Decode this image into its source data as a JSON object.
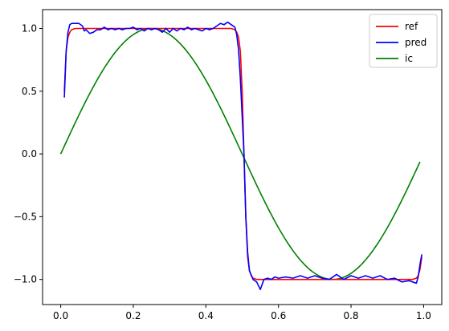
{
  "chart_data": {
    "type": "line",
    "title": "",
    "xlabel": "",
    "ylabel": "",
    "xlim": [
      -0.05,
      1.05
    ],
    "ylim": [
      -1.2,
      1.15
    ],
    "grid": false,
    "legend_position": "top-right",
    "x_ticks": [
      0.0,
      0.2,
      0.4,
      0.6,
      0.8,
      1.0
    ],
    "x_tick_labels": [
      "0.0",
      "0.2",
      "0.4",
      "0.6",
      "0.8",
      "1.0"
    ],
    "y_ticks": [
      1.0,
      0.5,
      0.0,
      -0.5,
      -1.0
    ],
    "y_tick_labels": [
      "1.0",
      "0.5",
      "0.0",
      "−0.5",
      "−1.0"
    ],
    "series": [
      {
        "name": "ref",
        "color": "#ff0000",
        "points": [
          [
            0.01,
            0.5
          ],
          [
            0.015,
            0.82
          ],
          [
            0.02,
            0.93
          ],
          [
            0.025,
            0.97
          ],
          [
            0.03,
            0.99
          ],
          [
            0.04,
            1.0
          ],
          [
            0.1,
            1.0
          ],
          [
            0.2,
            1.0
          ],
          [
            0.3,
            1.0
          ],
          [
            0.4,
            1.0
          ],
          [
            0.47,
            1.0
          ],
          [
            0.48,
            0.99
          ],
          [
            0.485,
            0.97
          ],
          [
            0.49,
            0.93
          ],
          [
            0.495,
            0.82
          ],
          [
            0.5,
            0.5
          ],
          [
            0.505,
            0.0
          ],
          [
            0.51,
            -0.5
          ],
          [
            0.515,
            -0.82
          ],
          [
            0.52,
            -0.93
          ],
          [
            0.525,
            -0.97
          ],
          [
            0.53,
            -0.99
          ],
          [
            0.54,
            -1.0
          ],
          [
            0.6,
            -1.0
          ],
          [
            0.7,
            -1.0
          ],
          [
            0.8,
            -1.0
          ],
          [
            0.9,
            -1.0
          ],
          [
            0.97,
            -1.0
          ],
          [
            0.98,
            -0.99
          ],
          [
            0.985,
            -0.97
          ],
          [
            0.99,
            -0.92
          ],
          [
            0.995,
            -0.82
          ]
        ]
      },
      {
        "name": "pred",
        "color": "#0000ff",
        "points": [
          [
            0.01,
            0.45
          ],
          [
            0.015,
            0.82
          ],
          [
            0.02,
            0.97
          ],
          [
            0.025,
            1.03
          ],
          [
            0.03,
            1.04
          ],
          [
            0.04,
            1.04
          ],
          [
            0.05,
            1.04
          ],
          [
            0.06,
            1.02
          ],
          [
            0.065,
            0.98
          ],
          [
            0.07,
            0.99
          ],
          [
            0.08,
            0.96
          ],
          [
            0.09,
            0.97
          ],
          [
            0.1,
            0.99
          ],
          [
            0.11,
            0.99
          ],
          [
            0.12,
            1.01
          ],
          [
            0.13,
            0.99
          ],
          [
            0.14,
            1.0
          ],
          [
            0.15,
            0.99
          ],
          [
            0.16,
            1.0
          ],
          [
            0.17,
            0.99
          ],
          [
            0.18,
            1.0
          ],
          [
            0.19,
            1.0
          ],
          [
            0.2,
            1.01
          ],
          [
            0.21,
            0.99
          ],
          [
            0.22,
            1.0
          ],
          [
            0.23,
            0.98
          ],
          [
            0.24,
            1.0
          ],
          [
            0.25,
            0.99
          ],
          [
            0.26,
            1.0
          ],
          [
            0.27,
            0.99
          ],
          [
            0.28,
            0.97
          ],
          [
            0.29,
            1.0
          ],
          [
            0.3,
            0.97
          ],
          [
            0.31,
            1.0
          ],
          [
            0.32,
            0.98
          ],
          [
            0.33,
            1.0
          ],
          [
            0.34,
            0.99
          ],
          [
            0.35,
            1.01
          ],
          [
            0.36,
            0.99
          ],
          [
            0.37,
            1.0
          ],
          [
            0.38,
            0.99
          ],
          [
            0.39,
            0.98
          ],
          [
            0.4,
            1.0
          ],
          [
            0.41,
            0.99
          ],
          [
            0.42,
            1.0
          ],
          [
            0.43,
            1.02
          ],
          [
            0.44,
            1.04
          ],
          [
            0.45,
            1.03
          ],
          [
            0.46,
            1.05
          ],
          [
            0.47,
            1.03
          ],
          [
            0.48,
            1.01
          ],
          [
            0.485,
            0.95
          ],
          [
            0.49,
            0.83
          ],
          [
            0.495,
            0.6
          ],
          [
            0.5,
            0.3
          ],
          [
            0.505,
            0.0
          ],
          [
            0.51,
            -0.5
          ],
          [
            0.515,
            -0.78
          ],
          [
            0.52,
            -0.93
          ],
          [
            0.53,
            -1.0
          ],
          [
            0.54,
            -1.02
          ],
          [
            0.55,
            -1.08
          ],
          [
            0.56,
            -1.0
          ],
          [
            0.57,
            -0.99
          ],
          [
            0.58,
            -1.0
          ],
          [
            0.59,
            -0.98
          ],
          [
            0.6,
            -0.99
          ],
          [
            0.62,
            -0.98
          ],
          [
            0.64,
            -0.99
          ],
          [
            0.66,
            -0.97
          ],
          [
            0.68,
            -0.99
          ],
          [
            0.7,
            -0.97
          ],
          [
            0.72,
            -0.99
          ],
          [
            0.74,
            -1.0
          ],
          [
            0.76,
            -0.96
          ],
          [
            0.78,
            -1.0
          ],
          [
            0.8,
            -0.97
          ],
          [
            0.82,
            -0.99
          ],
          [
            0.84,
            -0.97
          ],
          [
            0.86,
            -0.99
          ],
          [
            0.88,
            -0.97
          ],
          [
            0.9,
            -1.0
          ],
          [
            0.92,
            -0.99
          ],
          [
            0.94,
            -1.02
          ],
          [
            0.96,
            -1.01
          ],
          [
            0.97,
            -1.02
          ],
          [
            0.98,
            -1.03
          ],
          [
            0.985,
            -0.98
          ],
          [
            0.99,
            -0.88
          ],
          [
            0.995,
            -0.8
          ]
        ]
      },
      {
        "name": "ic",
        "color": "#008000",
        "function": "sin(2*pi*x)",
        "x_range": [
          0.0,
          0.99
        ]
      }
    ]
  }
}
